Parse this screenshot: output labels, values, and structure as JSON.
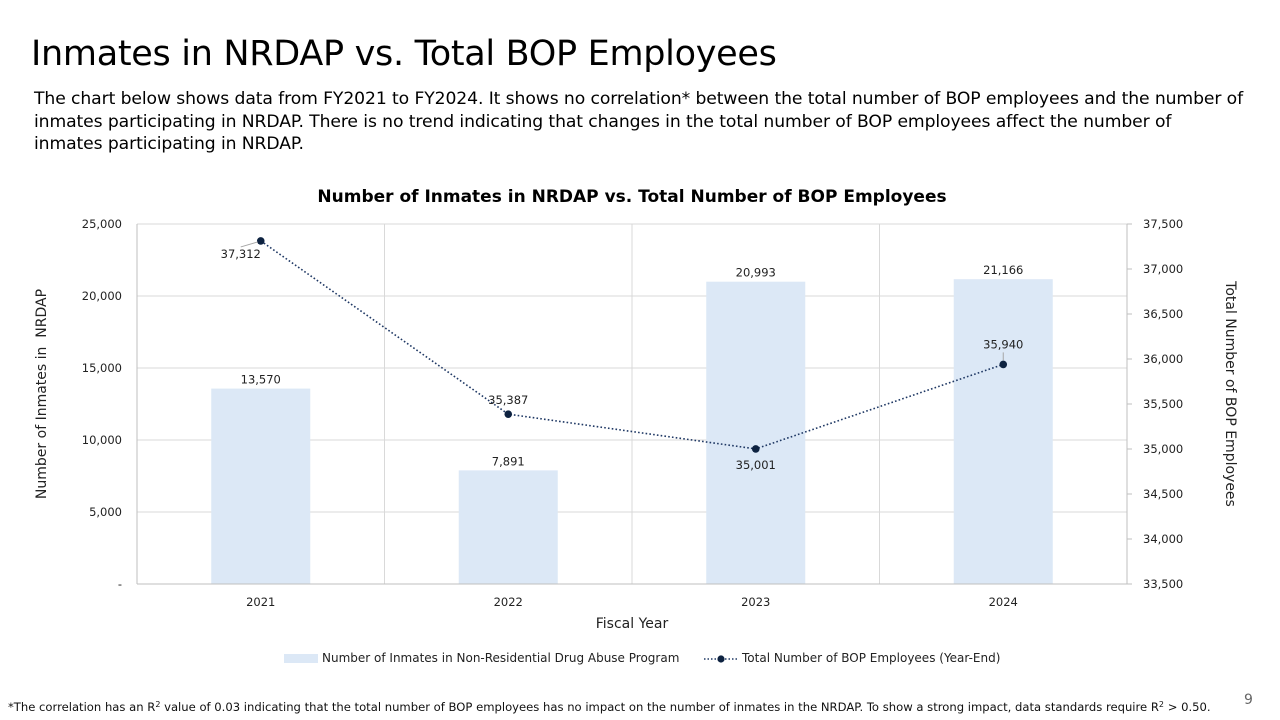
{
  "slide": {
    "title": "Inmates in NRDAP vs. Total BOP Employees",
    "description": "The chart below shows data from FY2021 to FY2024. It shows no correlation* between the total number of BOP employees and the number of inmates participating in NRDAP. There is no trend indicating that changes in the total number of BOP employees affect the number of inmates participating in NRDAP.",
    "footnote_pre": "*The correlation has an R",
    "footnote_sup1": "2",
    "footnote_mid": " value of 0.03 indicating that the total number of BOP employees has no impact on the number of inmates in the NRDAP. To show a strong impact, data standards require R",
    "footnote_sup2": "2",
    "footnote_post": " > 0.50.",
    "page_number": "9"
  },
  "colors": {
    "bar": "#dce8f6",
    "line": "#1f3864",
    "marker": "#0d2240",
    "grid": "#d9d9d9",
    "axis": "#bfbfbf"
  },
  "chart_data": {
    "type": "bar",
    "combo": "bar + line (secondary axis)",
    "title": "Number of Inmates in NRDAP vs. Total Number of BOP Employees",
    "xlabel": "Fiscal Year",
    "ylabel": "Number of Inmates in  NRDAP",
    "y2label": "Total Number of BOP Employees",
    "categories": [
      "2021",
      "2022",
      "2023",
      "2024"
    ],
    "ylim": [
      0,
      25000
    ],
    "y_ticks": [
      0,
      5000,
      10000,
      15000,
      20000,
      25000
    ],
    "y_tick_labels": [
      "-",
      "5,000",
      "10,000",
      "15,000",
      "20,000",
      "25,000"
    ],
    "y2lim": [
      33500,
      37500
    ],
    "y2_ticks": [
      33500,
      34000,
      34500,
      35000,
      35500,
      36000,
      36500,
      37000,
      37500
    ],
    "y2_tick_labels": [
      "33,500",
      "34,000",
      "34,500",
      "35,000",
      "35,500",
      "36,000",
      "36,500",
      "37,000",
      "37,500"
    ],
    "grid": true,
    "legend_position": "bottom",
    "series": [
      {
        "name": "Number of Inmates in Non-Residential Drug Abuse Program",
        "type": "bar",
        "axis": "left",
        "values": [
          13570,
          7891,
          20993,
          21166
        ],
        "labels": [
          "13,570",
          "7,891",
          "20,993",
          "21,166"
        ]
      },
      {
        "name": "Total Number of BOP Employees (Year-End)",
        "type": "line",
        "style": "dotted with circle markers",
        "axis": "right",
        "values": [
          37312,
          35387,
          35001,
          35940
        ],
        "labels": [
          "37,312",
          "35,387",
          "35,001",
          "35,940"
        ],
        "label_positions": [
          "below-left",
          "above",
          "below",
          "above"
        ]
      }
    ]
  }
}
